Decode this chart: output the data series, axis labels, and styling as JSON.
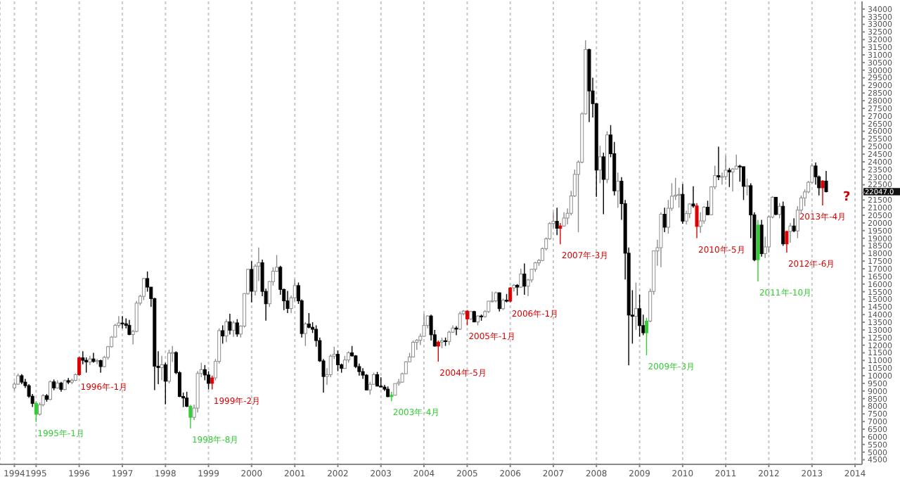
{
  "chart_data": {
    "type": "candlestick",
    "x": [
      "1994-07",
      "1994-08",
      "1994-09",
      "1994-10",
      "1994-11",
      "1994-12",
      "1995-01",
      "1995-02",
      "1995-03",
      "1995-04",
      "1995-05",
      "1995-06",
      "1995-07",
      "1995-08",
      "1995-09",
      "1995-10",
      "1995-11",
      "1995-12",
      "1996-01",
      "1996-02",
      "1996-03",
      "1996-04",
      "1996-05",
      "1996-06",
      "1996-07",
      "1996-08",
      "1996-09",
      "1996-10",
      "1996-11",
      "1996-12",
      "1997-01",
      "1997-02",
      "1997-03",
      "1997-04",
      "1997-05",
      "1997-06",
      "1997-07",
      "1997-08",
      "1997-09",
      "1997-10",
      "1997-11",
      "1997-12",
      "1998-01",
      "1998-02",
      "1998-03",
      "1998-04",
      "1998-05",
      "1998-06",
      "1998-07",
      "1998-08",
      "1998-09",
      "1998-10",
      "1998-11",
      "1998-12",
      "1999-01",
      "1999-02",
      "1999-03",
      "1999-04",
      "1999-05",
      "1999-06",
      "1999-07",
      "1999-08",
      "1999-09",
      "1999-10",
      "1999-11",
      "1999-12",
      "2000-01",
      "2000-02",
      "2000-03",
      "2000-04",
      "2000-05",
      "2000-06",
      "2000-07",
      "2000-08",
      "2000-09",
      "2000-10",
      "2000-11",
      "2000-12",
      "2001-01",
      "2001-02",
      "2001-03",
      "2001-04",
      "2001-05",
      "2001-06",
      "2001-07",
      "2001-08",
      "2001-09",
      "2001-10",
      "2001-11",
      "2001-12",
      "2002-01",
      "2002-02",
      "2002-03",
      "2002-04",
      "2002-05",
      "2002-06",
      "2002-07",
      "2002-08",
      "2002-09",
      "2002-10",
      "2002-11",
      "2002-12",
      "2003-01",
      "2003-02",
      "2003-03",
      "2003-04",
      "2003-05",
      "2003-06",
      "2003-07",
      "2003-08",
      "2003-09",
      "2003-10",
      "2003-11",
      "2003-12",
      "2004-01",
      "2004-02",
      "2004-03",
      "2004-04",
      "2004-05",
      "2004-06",
      "2004-07",
      "2004-08",
      "2004-09",
      "2004-10",
      "2004-11",
      "2004-12",
      "2005-01",
      "2005-02",
      "2005-03",
      "2005-04",
      "2005-05",
      "2005-06",
      "2005-07",
      "2005-08",
      "2005-09",
      "2005-10",
      "2005-11",
      "2005-12",
      "2006-01",
      "2006-02",
      "2006-03",
      "2006-04",
      "2006-05",
      "2006-06",
      "2006-07",
      "2006-08",
      "2006-09",
      "2006-10",
      "2006-11",
      "2006-12",
      "2007-01",
      "2007-02",
      "2007-03",
      "2007-04",
      "2007-05",
      "2007-06",
      "2007-07",
      "2007-08",
      "2007-09",
      "2007-10",
      "2007-11",
      "2007-12",
      "2008-01",
      "2008-02",
      "2008-03",
      "2008-04",
      "2008-05",
      "2008-06",
      "2008-07",
      "2008-08",
      "2008-09",
      "2008-10",
      "2008-11",
      "2008-12",
      "2009-01",
      "2009-02",
      "2009-03",
      "2009-04",
      "2009-05",
      "2009-06",
      "2009-07",
      "2009-08",
      "2009-09",
      "2009-10",
      "2009-11",
      "2009-12",
      "2010-01",
      "2010-02",
      "2010-03",
      "2010-04",
      "2010-05",
      "2010-06",
      "2010-07",
      "2010-08",
      "2010-09",
      "2010-10",
      "2010-11",
      "2010-12",
      "2011-01",
      "2011-02",
      "2011-03",
      "2011-04",
      "2011-05",
      "2011-06",
      "2011-07",
      "2011-08",
      "2011-09",
      "2011-10",
      "2011-11",
      "2011-12",
      "2012-01",
      "2012-02",
      "2012-03",
      "2012-04",
      "2012-05",
      "2012-06",
      "2012-07",
      "2012-08",
      "2012-09",
      "2012-10",
      "2012-11",
      "2012-12",
      "2013-01",
      "2013-02",
      "2013-03",
      "2013-04",
      "2013-05"
    ],
    "ohlc": [
      [
        9200,
        9600,
        9050,
        9450
      ],
      [
        9450,
        10140,
        9400,
        10000
      ],
      [
        10000,
        10100,
        9450,
        9580
      ],
      [
        9580,
        9800,
        9200,
        9350
      ],
      [
        9350,
        9450,
        8550,
        8660
      ],
      [
        8660,
        8800,
        7950,
        8190
      ],
      [
        8190,
        8300,
        6970,
        7480
      ],
      [
        7480,
        8250,
        7400,
        8100
      ],
      [
        8100,
        8800,
        8000,
        8690
      ],
      [
        8690,
        8800,
        8300,
        8450
      ],
      [
        8450,
        9700,
        8400,
        9600
      ],
      [
        9600,
        9750,
        9050,
        9200
      ],
      [
        9200,
        9700,
        9150,
        9520
      ],
      [
        9520,
        9600,
        8950,
        9100
      ],
      [
        9100,
        9750,
        9050,
        9680
      ],
      [
        9680,
        9850,
        9450,
        9580
      ],
      [
        9580,
        9800,
        9450,
        9700
      ],
      [
        9700,
        10150,
        9650,
        10070
      ],
      [
        10070,
        11250,
        10000,
        11170
      ],
      [
        11170,
        11600,
        10750,
        11010
      ],
      [
        11010,
        11200,
        10200,
        10900
      ],
      [
        10900,
        11300,
        10700,
        11100
      ],
      [
        11100,
        11500,
        10850,
        10930
      ],
      [
        10930,
        11100,
        10750,
        10990
      ],
      [
        10990,
        11050,
        10200,
        10600
      ],
      [
        10600,
        11300,
        10550,
        11200
      ],
      [
        11200,
        11950,
        11050,
        11900
      ],
      [
        11900,
        12600,
        11850,
        12530
      ],
      [
        12530,
        13400,
        12500,
        13300
      ],
      [
        13300,
        13900,
        13150,
        13450
      ],
      [
        13450,
        13900,
        13100,
        13400
      ],
      [
        13400,
        13750,
        13100,
        13300
      ],
      [
        13300,
        13650,
        12650,
        12700
      ],
      [
        12700,
        13000,
        12050,
        12900
      ],
      [
        12900,
        14900,
        12850,
        14750
      ],
      [
        14750,
        15300,
        14600,
        15200
      ],
      [
        15200,
        16400,
        14950,
        16360
      ],
      [
        16360,
        16820,
        15500,
        15800
      ],
      [
        15800,
        15800,
        14500,
        15050
      ],
      [
        15050,
        15100,
        9060,
        10620
      ],
      [
        10620,
        11600,
        9450,
        10530
      ],
      [
        10530,
        11300,
        9700,
        10720
      ],
      [
        10720,
        10850,
        8120,
        9640
      ],
      [
        9640,
        11700,
        9500,
        11480
      ],
      [
        11480,
        11950,
        10900,
        11520
      ],
      [
        11520,
        11600,
        10100,
        10200
      ],
      [
        10200,
        10300,
        8600,
        8640
      ],
      [
        8640,
        8900,
        7950,
        8540
      ],
      [
        8540,
        8950,
        7950,
        8000
      ],
      [
        8000,
        8100,
        6545,
        7275
      ],
      [
        7275,
        8100,
        7100,
        7880
      ],
      [
        7880,
        10300,
        7600,
        10150
      ],
      [
        10150,
        10850,
        9900,
        10400
      ],
      [
        10400,
        10700,
        9700,
        10050
      ],
      [
        10050,
        10300,
        9100,
        9500
      ],
      [
        9500,
        10000,
        9100,
        9860
      ],
      [
        9860,
        11100,
        9700,
        10940
      ],
      [
        10940,
        13100,
        10800,
        12950
      ],
      [
        12950,
        13300,
        12100,
        12600
      ],
      [
        12600,
        13700,
        12200,
        13530
      ],
      [
        13530,
        14050,
        12700,
        12980
      ],
      [
        12980,
        13600,
        12550,
        13460
      ],
      [
        13460,
        13700,
        12550,
        12730
      ],
      [
        12730,
        13300,
        12500,
        13250
      ],
      [
        13250,
        15400,
        13150,
        15380
      ],
      [
        15380,
        17000,
        15300,
        16960
      ],
      [
        16960,
        17500,
        14800,
        15530
      ],
      [
        15530,
        17300,
        15250,
        17170
      ],
      [
        17170,
        18400,
        16200,
        17400
      ],
      [
        17400,
        17600,
        15200,
        15520
      ],
      [
        15520,
        15700,
        13600,
        14710
      ],
      [
        14710,
        16200,
        14500,
        16160
      ],
      [
        16160,
        17100,
        15900,
        16840
      ],
      [
        16840,
        17900,
        16800,
        17100
      ],
      [
        17100,
        17200,
        15300,
        15650
      ],
      [
        15650,
        15700,
        14300,
        14900
      ],
      [
        14900,
        15550,
        14100,
        14400
      ],
      [
        14400,
        15250,
        14100,
        15100
      ],
      [
        15100,
        16300,
        14900,
        15900
      ],
      [
        15900,
        16100,
        14700,
        14900
      ],
      [
        14900,
        15000,
        12500,
        12760
      ],
      [
        12760,
        13500,
        11950,
        13390
      ],
      [
        13390,
        14100,
        13100,
        13170
      ],
      [
        13170,
        13500,
        12800,
        13040
      ],
      [
        13040,
        13300,
        11900,
        12300
      ],
      [
        12300,
        12500,
        10900,
        10970
      ],
      [
        10970,
        11100,
        8900,
        9950
      ],
      [
        9950,
        10500,
        9400,
        10070
      ],
      [
        10070,
        11400,
        9900,
        11280
      ],
      [
        11280,
        11900,
        11100,
        11400
      ],
      [
        11400,
        11650,
        10300,
        10720
      ],
      [
        10720,
        10800,
        10200,
        10480
      ],
      [
        10480,
        11300,
        10450,
        11030
      ],
      [
        11030,
        11600,
        10850,
        11500
      ],
      [
        11500,
        11950,
        11250,
        11300
      ],
      [
        11300,
        11350,
        10500,
        10600
      ],
      [
        10600,
        10800,
        10000,
        10270
      ],
      [
        10270,
        10500,
        9800,
        10040
      ],
      [
        10040,
        10100,
        9050,
        9070
      ],
      [
        9070,
        9600,
        8770,
        9440
      ],
      [
        9440,
        10200,
        9400,
        10070
      ],
      [
        10070,
        10250,
        9300,
        9320
      ],
      [
        9320,
        9900,
        9250,
        9260
      ],
      [
        9260,
        9400,
        9000,
        9120
      ],
      [
        9120,
        9300,
        8600,
        8630
      ],
      [
        8630,
        8950,
        8330,
        8720
      ],
      [
        8720,
        9500,
        8700,
        9490
      ],
      [
        9490,
        9800,
        9350,
        9580
      ],
      [
        9580,
        10200,
        9550,
        10130
      ],
      [
        10130,
        10950,
        10100,
        10910
      ],
      [
        10910,
        11500,
        10900,
        11230
      ],
      [
        11230,
        12300,
        11200,
        12190
      ],
      [
        12190,
        12400,
        11700,
        12320
      ],
      [
        12320,
        12750,
        12000,
        12580
      ],
      [
        12580,
        14050,
        12550,
        13290
      ],
      [
        13290,
        13950,
        13100,
        13910
      ],
      [
        13910,
        14000,
        12300,
        12680
      ],
      [
        12680,
        13000,
        11900,
        11940
      ],
      [
        11940,
        12300,
        10920,
        12200
      ],
      [
        12200,
        12500,
        11800,
        12290
      ],
      [
        12290,
        12500,
        11950,
        12240
      ],
      [
        12240,
        12950,
        12000,
        12850
      ],
      [
        12850,
        13300,
        12800,
        13120
      ],
      [
        13120,
        13250,
        12650,
        13050
      ],
      [
        13050,
        14200,
        13000,
        14060
      ],
      [
        14060,
        14300,
        13950,
        14230
      ],
      [
        14230,
        14300,
        13300,
        13720
      ],
      [
        13720,
        14250,
        13650,
        14200
      ],
      [
        14200,
        14250,
        13500,
        13520
      ],
      [
        13520,
        13950,
        13300,
        13910
      ],
      [
        13910,
        14000,
        13600,
        13870
      ],
      [
        13870,
        14300,
        13800,
        14200
      ],
      [
        14200,
        14900,
        14100,
        14880
      ],
      [
        14880,
        15500,
        14800,
        14900
      ],
      [
        14900,
        15500,
        14800,
        15430
      ],
      [
        15430,
        15450,
        14200,
        14390
      ],
      [
        14390,
        15050,
        14300,
        14940
      ],
      [
        14940,
        15350,
        14800,
        14880
      ],
      [
        14880,
        15800,
        14800,
        15750
      ],
      [
        15750,
        16000,
        15500,
        15920
      ],
      [
        15920,
        16000,
        15250,
        15800
      ],
      [
        15800,
        17000,
        15750,
        16660
      ],
      [
        16660,
        17350,
        15300,
        15860
      ],
      [
        15860,
        16350,
        15200,
        16270
      ],
      [
        16270,
        17000,
        16100,
        16970
      ],
      [
        16970,
        17450,
        16800,
        17390
      ],
      [
        17390,
        17650,
        17200,
        17540
      ],
      [
        17540,
        18400,
        17500,
        18320
      ],
      [
        18320,
        19050,
        18200,
        18960
      ],
      [
        18960,
        20050,
        18900,
        19960
      ],
      [
        19960,
        20700,
        19700,
        20110
      ],
      [
        20110,
        21000,
        19200,
        19650
      ],
      [
        19650,
        20000,
        18600,
        19800
      ],
      [
        19800,
        20700,
        19750,
        20320
      ],
      [
        20320,
        20950,
        19900,
        20630
      ],
      [
        20630,
        22100,
        20500,
        21770
      ],
      [
        21770,
        23500,
        21700,
        23180
      ],
      [
        23180,
        24100,
        19390,
        23980
      ],
      [
        23980,
        27250,
        23900,
        27140
      ],
      [
        27140,
        31960,
        27100,
        31350
      ],
      [
        31350,
        31400,
        26600,
        28640
      ],
      [
        28640,
        29500,
        26900,
        27810
      ],
      [
        27810,
        27850,
        21710,
        23460
      ],
      [
        23460,
        25050,
        22600,
        24330
      ],
      [
        24330,
        24600,
        20570,
        22850
      ],
      [
        22850,
        26000,
        22600,
        25760
      ],
      [
        25760,
        26400,
        24300,
        24530
      ],
      [
        24530,
        25300,
        21800,
        22100
      ],
      [
        22100,
        23300,
        21000,
        22730
      ],
      [
        22730,
        23000,
        20200,
        21260
      ],
      [
        21260,
        21500,
        16300,
        18020
      ],
      [
        18020,
        18400,
        10680,
        13970
      ],
      [
        13970,
        15600,
        12100,
        13890
      ],
      [
        13890,
        16100,
        13000,
        14390
      ],
      [
        14390,
        15300,
        12550,
        13280
      ],
      [
        13280,
        14000,
        12650,
        12810
      ],
      [
        12810,
        13800,
        11340,
        13580
      ],
      [
        13580,
        15700,
        13500,
        15520
      ],
      [
        15520,
        18200,
        15300,
        18170
      ],
      [
        18170,
        18900,
        17200,
        18380
      ],
      [
        18380,
        20700,
        17100,
        20570
      ],
      [
        20570,
        21000,
        19400,
        19720
      ],
      [
        19720,
        21500,
        19300,
        20960
      ],
      [
        20960,
        22600,
        20800,
        21750
      ],
      [
        21750,
        22950,
        21500,
        21820
      ],
      [
        21820,
        22300,
        21000,
        21870
      ],
      [
        21870,
        22550,
        19950,
        20120
      ],
      [
        20120,
        20800,
        19900,
        20610
      ],
      [
        20610,
        21300,
        20300,
        21240
      ],
      [
        21240,
        22400,
        21000,
        21110
      ],
      [
        21110,
        21300,
        19000,
        19770
      ],
      [
        19770,
        20700,
        19350,
        20130
      ],
      [
        20130,
        21100,
        19950,
        21030
      ],
      [
        21030,
        21450,
        20500,
        20540
      ],
      [
        20540,
        22400,
        20500,
        22360
      ],
      [
        22360,
        23750,
        22200,
        23100
      ],
      [
        23100,
        24990,
        22800,
        23010
      ],
      [
        23010,
        23300,
        22500,
        23040
      ],
      [
        23040,
        24400,
        22800,
        23450
      ],
      [
        23450,
        23600,
        22350,
        23340
      ],
      [
        23340,
        23600,
        22050,
        23530
      ],
      [
        23530,
        24470,
        23500,
        23720
      ],
      [
        23720,
        23800,
        22700,
        23680
      ],
      [
        23680,
        23700,
        21500,
        22400
      ],
      [
        22400,
        22900,
        21800,
        22440
      ],
      [
        22440,
        22600,
        19000,
        20530
      ],
      [
        20530,
        20700,
        17500,
        17590
      ],
      [
        17590,
        20200,
        16170,
        19860
      ],
      [
        19860,
        20200,
        17800,
        17990
      ],
      [
        17990,
        19100,
        17700,
        18430
      ],
      [
        18430,
        20500,
        18050,
        20390
      ],
      [
        20390,
        21750,
        20300,
        21680
      ],
      [
        21680,
        21700,
        20500,
        20560
      ],
      [
        20560,
        21300,
        20300,
        21090
      ],
      [
        21090,
        21400,
        18500,
        18630
      ],
      [
        18630,
        19500,
        18060,
        19440
      ],
      [
        19440,
        20000,
        18700,
        19800
      ],
      [
        19800,
        20300,
        19400,
        19480
      ],
      [
        19480,
        21100,
        19000,
        20840
      ],
      [
        20840,
        21800,
        20600,
        21640
      ],
      [
        21640,
        22200,
        21100,
        22030
      ],
      [
        22030,
        22750,
        21950,
        22660
      ],
      [
        22660,
        23900,
        22600,
        23730
      ],
      [
        23730,
        23950,
        22500,
        23020
      ],
      [
        23020,
        23100,
        21800,
        22300
      ],
      [
        22300,
        22800,
        21150,
        22740
      ],
      [
        22740,
        23400,
        22000,
        22047
      ]
    ],
    "colors": [
      "#ffffff",
      "#ffffff",
      "#000000",
      "#000000",
      "#000000",
      "#000000",
      "#33cc33",
      "#ffffff",
      "#ffffff",
      "#000000",
      "#ffffff",
      "#000000",
      "#ffffff",
      "#000000",
      "#ffffff",
      "#000000",
      "#ffffff",
      "#ffffff",
      "#dd0000",
      "#000000",
      "#000000",
      "#ffffff",
      "#000000",
      "#ffffff",
      "#000000",
      "#ffffff",
      "#ffffff",
      "#ffffff",
      "#ffffff",
      "#ffffff",
      "#000000",
      "#000000",
      "#000000",
      "#ffffff",
      "#ffffff",
      "#ffffff",
      "#ffffff",
      "#000000",
      "#000000",
      "#000000",
      "#000000",
      "#ffffff",
      "#000000",
      "#ffffff",
      "#ffffff",
      "#000000",
      "#000000",
      "#000000",
      "#000000",
      "#33cc33",
      "#ffffff",
      "#ffffff",
      "#ffffff",
      "#000000",
      "#000000",
      "#dd0000",
      "#ffffff",
      "#ffffff",
      "#000000",
      "#ffffff",
      "#000000",
      "#ffffff",
      "#000000",
      "#ffffff",
      "#ffffff",
      "#ffffff",
      "#000000",
      "#ffffff",
      "#ffffff",
      "#000000",
      "#000000",
      "#ffffff",
      "#ffffff",
      "#ffffff",
      "#000000",
      "#000000",
      "#000000",
      "#ffffff",
      "#ffffff",
      "#000000",
      "#000000",
      "#ffffff",
      "#000000",
      "#000000",
      "#000000",
      "#000000",
      "#000000",
      "#ffffff",
      "#ffffff",
      "#ffffff",
      "#000000",
      "#000000",
      "#ffffff",
      "#ffffff",
      "#000000",
      "#000000",
      "#000000",
      "#000000",
      "#000000",
      "#ffffff",
      "#ffffff",
      "#000000",
      "#000000",
      "#000000",
      "#000000",
      "#33cc33",
      "#ffffff",
      "#ffffff",
      "#ffffff",
      "#ffffff",
      "#ffffff",
      "#ffffff",
      "#ffffff",
      "#ffffff",
      "#ffffff",
      "#ffffff",
      "#000000",
      "#000000",
      "#dd0000",
      "#ffffff",
      "#000000",
      "#ffffff",
      "#ffffff",
      "#000000",
      "#ffffff",
      "#ffffff",
      "#dd0000",
      "#ffffff",
      "#000000",
      "#ffffff",
      "#000000",
      "#ffffff",
      "#ffffff",
      "#ffffff",
      "#ffffff",
      "#000000",
      "#ffffff",
      "#000000",
      "#dd0000",
      "#ffffff",
      "#000000",
      "#ffffff",
      "#000000",
      "#ffffff",
      "#ffffff",
      "#ffffff",
      "#ffffff",
      "#ffffff",
      "#ffffff",
      "#ffffff",
      "#ffffff",
      "#000000",
      "#dd0000",
      "#ffffff",
      "#ffffff",
      "#ffffff",
      "#ffffff",
      "#ffffff",
      "#ffffff",
      "#ffffff",
      "#000000",
      "#000000",
      "#000000",
      "#ffffff",
      "#000000",
      "#ffffff",
      "#000000",
      "#000000",
      "#ffffff",
      "#000000",
      "#000000",
      "#000000",
      "#000000",
      "#ffffff",
      "#000000",
      "#000000",
      "#33cc33",
      "#ffffff",
      "#ffffff",
      "#ffffff",
      "#ffffff",
      "#000000",
      "#ffffff",
      "#ffffff",
      "#ffffff",
      "#ffffff",
      "#000000",
      "#ffffff",
      "#ffffff",
      "#000000",
      "#dd0000",
      "#ffffff",
      "#ffffff",
      "#000000",
      "#ffffff",
      "#ffffff",
      "#000000",
      "#ffffff",
      "#ffffff",
      "#000000",
      "#ffffff",
      "#ffffff",
      "#000000",
      "#000000",
      "#ffffff",
      "#000000",
      "#000000",
      "#33cc33",
      "#000000",
      "#ffffff",
      "#ffffff",
      "#ffffff",
      "#000000",
      "#ffffff",
      "#000000",
      "#dd0000",
      "#ffffff",
      "#000000",
      "#ffffff",
      "#ffffff",
      "#ffffff",
      "#ffffff",
      "#ffffff",
      "#000000",
      "#000000",
      "#dd0000",
      "#000000"
    ],
    "xlim": [
      "1994-03",
      "2014-03"
    ],
    "xticks": [
      {
        "value": "1994-07",
        "label": "1994"
      },
      {
        "value": "1995-01",
        "label": "1995"
      },
      {
        "value": "1996-01",
        "label": "1996"
      },
      {
        "value": "1997-01",
        "label": "1997"
      },
      {
        "value": "1998-01",
        "label": "1998"
      },
      {
        "value": "1999-01",
        "label": "1999"
      },
      {
        "value": "2000-01",
        "label": "2000"
      },
      {
        "value": "2001-01",
        "label": "2001"
      },
      {
        "value": "2002-01",
        "label": "2002"
      },
      {
        "value": "2003-01",
        "label": "2003"
      },
      {
        "value": "2004-01",
        "label": "2004"
      },
      {
        "value": "2005-01",
        "label": "2005"
      },
      {
        "value": "2006-01",
        "label": "2006"
      },
      {
        "value": "2007-01",
        "label": "2007"
      },
      {
        "value": "2008-01",
        "label": "2008"
      },
      {
        "value": "2009-01",
        "label": "2009"
      },
      {
        "value": "2010-01",
        "label": "2010"
      },
      {
        "value": "2011-01",
        "label": "2011"
      },
      {
        "value": "2012-01",
        "label": "2012"
      },
      {
        "value": "2013-01",
        "label": "2013"
      },
      {
        "value": "2014-01",
        "label": "2014"
      }
    ],
    "ylim": [
      4200,
      34500
    ],
    "yticks": [
      4500,
      5000,
      5500,
      6000,
      6500,
      7000,
      7500,
      8000,
      8500,
      9000,
      9500,
      10000,
      10500,
      11000,
      11500,
      12000,
      12500,
      13000,
      13500,
      14000,
      14500,
      15000,
      15500,
      16000,
      16500,
      17000,
      17500,
      18000,
      18500,
      19000,
      19500,
      20000,
      20500,
      21000,
      21500,
      {
        "value": 22000,
        "label": null
      },
      22500,
      23000,
      23500,
      24000,
      24500,
      25000,
      25500,
      26000,
      26500,
      27000,
      27500,
      28000,
      28500,
      29000,
      29500,
      30000,
      30500,
      31000,
      31500,
      32000,
      32500,
      33000,
      33500,
      34000
    ],
    "grid": "x",
    "annotations": [
      {
        "text": "1995年-1月",
        "x": "1995-01",
        "y": 6970
      },
      {
        "text": "1996年-1月",
        "x": "1996-01",
        "y": 10000
      },
      {
        "text": "1998年-8月",
        "x": "1998-08",
        "y": 6545
      },
      {
        "text": "1999年-2月",
        "x": "1999-02",
        "y": 9100
      },
      {
        "text": "2003年-4月",
        "x": "2003-04",
        "y": 8330
      },
      {
        "text": "2004年-5月",
        "x": "2004-05",
        "y": 10920
      },
      {
        "text": "2005年-1月",
        "x": "2005-01",
        "y": 13300
      },
      {
        "text": "2006年-1月",
        "x": "2006-01",
        "y": 14800
      },
      {
        "text": "2007年-3月",
        "x": "2007-03",
        "y": 18600
      },
      {
        "text": "2009年-3月",
        "x": "2009-03",
        "y": 11340
      },
      {
        "text": "2010年-5月",
        "x": "2010-05",
        "y": 19000
      },
      {
        "text": "2011年-10月",
        "x": "2011-10",
        "y": 16170
      },
      {
        "text": "2012年-6月",
        "x": "2012-06",
        "y": 18060
      },
      {
        "text": "2013年-4月",
        "x": "2013-04",
        "y": 21150
      },
      "22047.0",
      "?"
    ]
  }
}
